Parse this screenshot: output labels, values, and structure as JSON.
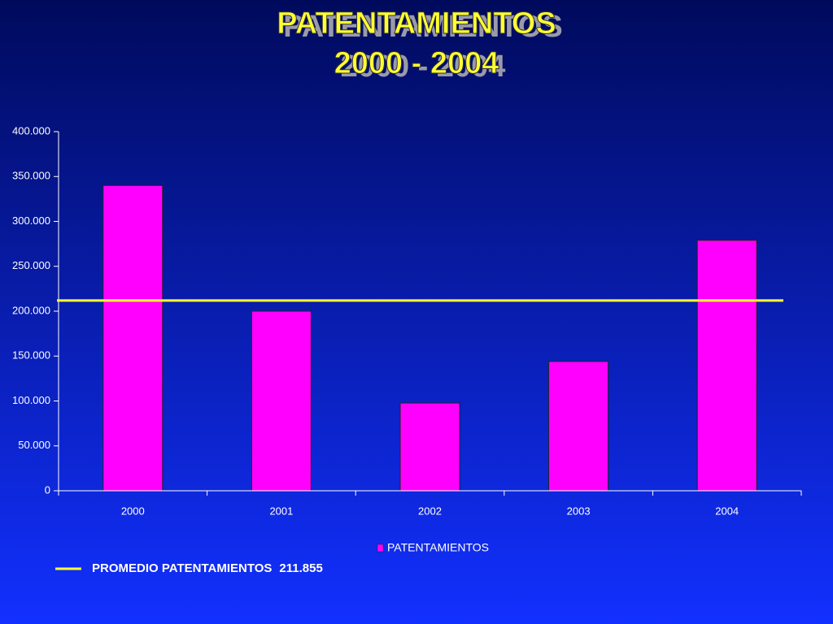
{
  "chart_data": {
    "type": "bar",
    "title": "PATENTAMIENTOS",
    "subtitle": "2000 - 2004",
    "categories": [
      "2000",
      "2001",
      "2002",
      "2003",
      "2004"
    ],
    "series": [
      {
        "name": "PATENTAMIENTOS",
        "color": "#ff00ff",
        "values": [
          340000,
          200000,
          97700,
          144000,
          279000
        ]
      }
    ],
    "ylim": [
      0,
      400000
    ],
    "yticks": [
      0,
      {
        "value": 50000,
        "label": "50.000"
      },
      {
        "value": 100000,
        "label": "100.000"
      },
      {
        "value": 150000,
        "label": "150.000"
      },
      {
        "value": 200000,
        "label": "200.000"
      },
      {
        "value": 250000,
        "label": "250.000"
      },
      {
        "value": 300000,
        "label": "300.000"
      },
      {
        "value": 350000,
        "label": "350.000"
      },
      {
        "value": 400000,
        "label": "400.000"
      }
    ],
    "grid": false,
    "legend_position": "bottom",
    "reference_line": {
      "name": "PROMEDIO PATENTAMIENTOS",
      "value": 211855,
      "value_label": "211.855",
      "color": "#ffff33"
    }
  }
}
